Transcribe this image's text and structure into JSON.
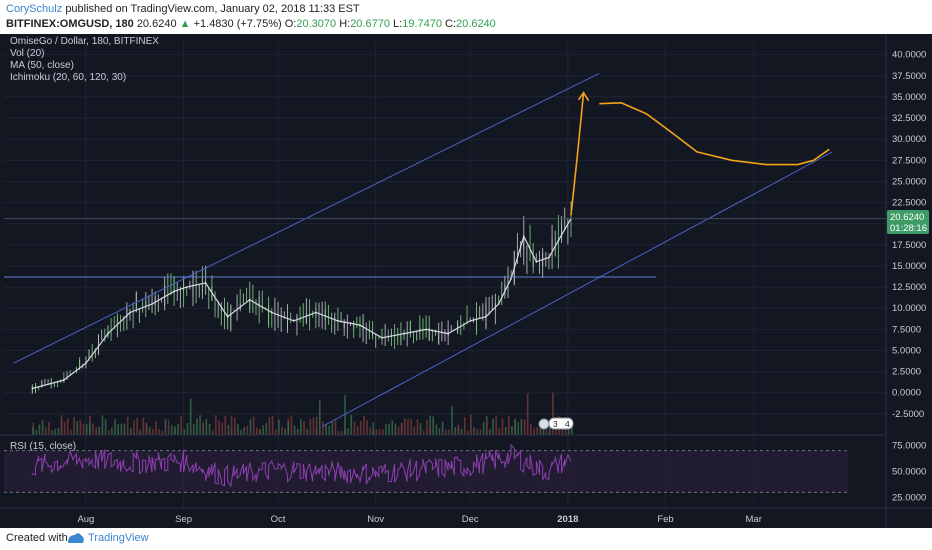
{
  "header": {
    "author": "CorySchulz",
    "published_text": "published on TradingView.com, January 02, 2018 11:33 EST",
    "symbol": "BITFINEX:OMGUSD, 180",
    "last_price": "20.6240",
    "change_arrow": "▲",
    "change": "+1.4830 (+7.75%)",
    "open_label": "O:",
    "open": "20.3070",
    "high_label": "H:",
    "high": "20.6770",
    "low_label": "L:",
    "low": "19.7470",
    "close_label": "C:",
    "close": "20.6240"
  },
  "legend": {
    "title": "OmiseGo / Dollar, 180, BITFINEX",
    "vol": "Vol (20)",
    "ma": "MA (50, close)",
    "ichimoku": "Ichimoku (20, 60, 120, 30)",
    "rsi": "RSI (15, close)"
  },
  "price_tag": {
    "value": "20.6240",
    "countdown": "01:28:16"
  },
  "event_badge": {
    "left": "3",
    "right": "4"
  },
  "footer": {
    "created_with": "Created with",
    "brand": "TradingView"
  },
  "colors": {
    "background": "#131722",
    "grid": "#1f2433",
    "candle_up": "#7ec97e",
    "candle_down": "#c0c0c8",
    "trendline": "#4763c9",
    "drawing": "#f5a21b",
    "rsi": "#8b3fae",
    "price_tag": "#3f9c67"
  },
  "chart_data": [
    {
      "type": "line",
      "name": "price",
      "x": [
        "2017-07-15",
        "2017-07-25",
        "2017-08-01",
        "2017-08-08",
        "2017-08-15",
        "2017-08-22",
        "2017-08-29",
        "2017-09-02",
        "2017-09-08",
        "2017-09-15",
        "2017-09-22",
        "2017-09-29",
        "2017-10-06",
        "2017-10-13",
        "2017-10-20",
        "2017-10-27",
        "2017-11-03",
        "2017-11-10",
        "2017-11-17",
        "2017-11-24",
        "2017-12-01",
        "2017-12-06",
        "2017-12-10",
        "2017-12-14",
        "2017-12-18",
        "2017-12-22",
        "2017-12-26",
        "2017-12-29",
        "2018-01-02"
      ],
      "values": [
        0.5,
        1.5,
        3.5,
        7.0,
        9.5,
        10.5,
        12.0,
        12.5,
        13.0,
        9.0,
        11.0,
        9.5,
        8.5,
        9.5,
        8.5,
        8.0,
        6.5,
        7.0,
        7.5,
        7.0,
        8.5,
        9.0,
        10.5,
        13.5,
        18.5,
        15.5,
        16.0,
        18.0,
        20.6
      ],
      "ylim": [
        -5,
        41.5
      ],
      "y_ticks": [
        "40.0000",
        "37.5000",
        "35.0000",
        "32.5000",
        "30.0000",
        "27.5000",
        "25.0000",
        "22.5000",
        "20.0000",
        "17.5000",
        "15.0000",
        "12.5000",
        "10.0000",
        "7.5000",
        "5.0000",
        "2.5000",
        "0.0000",
        "-2.5000"
      ],
      "x_ticks": [
        "Aug",
        "Sep",
        "Oct",
        "Nov",
        "Dec",
        "2018",
        "Feb",
        "Mar"
      ],
      "annotations": {
        "upper_trendline": [
          [
            "2017-07-09",
            3.5
          ],
          [
            "2018-01-11",
            37.8
          ]
        ],
        "lower_trendline": [
          [
            "2017-10-15",
            -4.0
          ],
          [
            "2018-03-26",
            28.5
          ]
        ],
        "horizontal_line": 13.7,
        "projection": [
          [
            "2018-01-02",
            21.0
          ],
          [
            "2018-01-04",
            28.0
          ],
          [
            "2018-01-06",
            35.5
          ],
          [
            "2018-01-08",
            32.5
          ],
          [
            "2018-01-11",
            34.2
          ],
          [
            "2018-01-18",
            34.3
          ],
          [
            "2018-01-26",
            33.0
          ],
          [
            "2018-02-04",
            30.5
          ],
          [
            "2018-02-11",
            28.5
          ],
          [
            "2018-02-22",
            27.5
          ],
          [
            "2018-03-05",
            27.0
          ],
          [
            "2018-03-15",
            27.0
          ],
          [
            "2018-03-20",
            27.5
          ],
          [
            "2018-03-25",
            28.8
          ]
        ],
        "grid": true
      }
    },
    {
      "type": "line",
      "name": "RSI (15, close)",
      "x": [
        "2017-07-15",
        "2017-08-01",
        "2017-08-15",
        "2017-09-01",
        "2017-09-15",
        "2017-10-01",
        "2017-10-15",
        "2017-11-01",
        "2017-11-15",
        "2017-12-01",
        "2017-12-15",
        "2017-12-25",
        "2018-01-02"
      ],
      "values": [
        55,
        62,
        58,
        60,
        45,
        52,
        50,
        48,
        52,
        55,
        65,
        50,
        62
      ],
      "ylim": [
        15,
        85
      ],
      "y_ticks": [
        "75.0000",
        "50.0000",
        "25.0000"
      ],
      "guides": [
        70,
        30
      ]
    }
  ]
}
